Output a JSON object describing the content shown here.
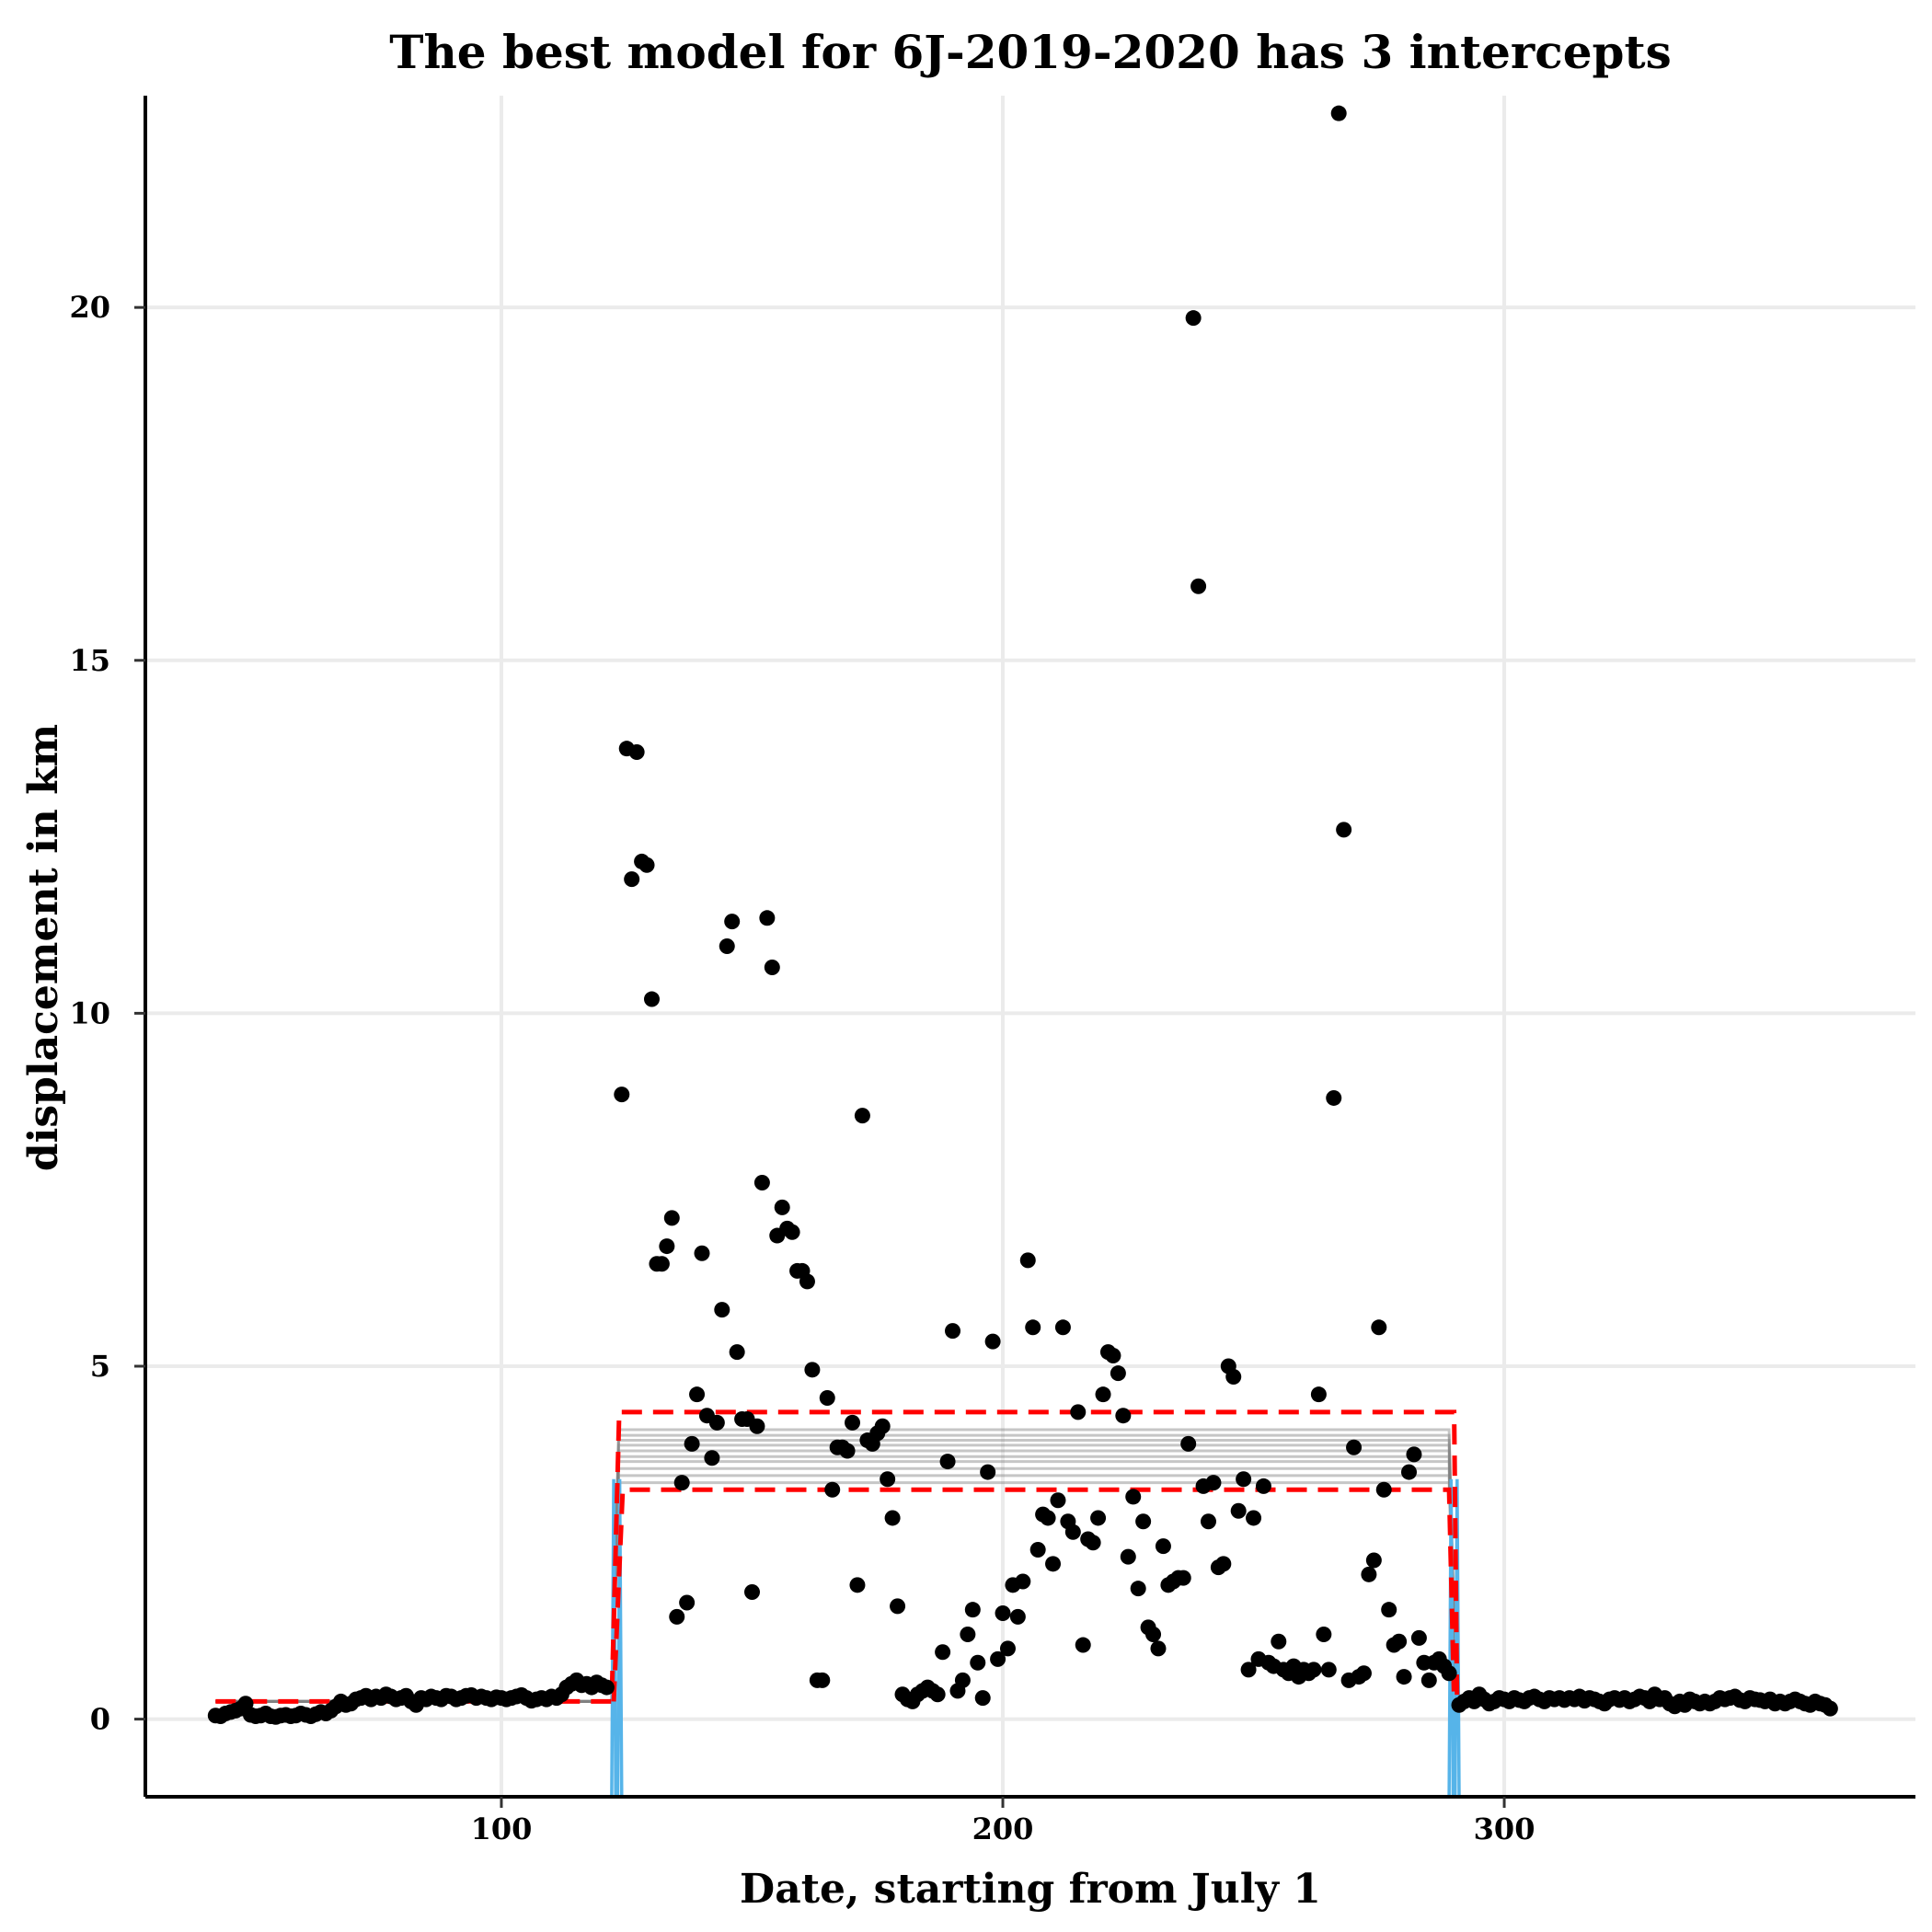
{
  "chart_data": {
    "type": "scatter",
    "title": "The best model for 6J-2019-2020 has 3 intercepts",
    "xlabel": "Date, starting from July 1",
    "ylabel": "displacement in km",
    "xlim": [
      29,
      382
    ],
    "ylim": [
      -1.1,
      23.0
    ],
    "xticks": [
      100,
      200,
      300
    ],
    "yticks": [
      0,
      5,
      10,
      15,
      20
    ],
    "grid": true,
    "colors": {
      "points": "#000000",
      "model_lines": "#808080",
      "interval": "#ff0000",
      "transition": "#56b4e9",
      "grid": "#ebebeb"
    },
    "breakpoints": [
      123,
      290
    ],
    "segment_means": [
      0.25,
      3.8,
      0.25
    ],
    "interval_band": {
      "upper": 4.35,
      "lower": 3.25
    },
    "points": [
      [
        43,
        0.05
      ],
      [
        44,
        0.04
      ],
      [
        45,
        0.08
      ],
      [
        46,
        0.1
      ],
      [
        47,
        0.12
      ],
      [
        48,
        0.15
      ],
      [
        49,
        0.22
      ],
      [
        50,
        0.06
      ],
      [
        51,
        0.04
      ],
      [
        52,
        0.05
      ],
      [
        53,
        0.08
      ],
      [
        54,
        0.04
      ],
      [
        55,
        0.03
      ],
      [
        56,
        0.05
      ],
      [
        57,
        0.06
      ],
      [
        58,
        0.04
      ],
      [
        59,
        0.05
      ],
      [
        60,
        0.08
      ],
      [
        61,
        0.06
      ],
      [
        62,
        0.04
      ],
      [
        63,
        0.07
      ],
      [
        64,
        0.1
      ],
      [
        65,
        0.08
      ],
      [
        66,
        0.12
      ],
      [
        67,
        0.18
      ],
      [
        68,
        0.25
      ],
      [
        69,
        0.2
      ],
      [
        70,
        0.22
      ],
      [
        71,
        0.28
      ],
      [
        72,
        0.3
      ],
      [
        73,
        0.33
      ],
      [
        74,
        0.28
      ],
      [
        75,
        0.32
      ],
      [
        76,
        0.3
      ],
      [
        77,
        0.35
      ],
      [
        78,
        0.32
      ],
      [
        79,
        0.28
      ],
      [
        80,
        0.3
      ],
      [
        81,
        0.33
      ],
      [
        82,
        0.25
      ],
      [
        83,
        0.2
      ],
      [
        84,
        0.3
      ],
      [
        85,
        0.28
      ],
      [
        86,
        0.32
      ],
      [
        87,
        0.3
      ],
      [
        88,
        0.28
      ],
      [
        89,
        0.33
      ],
      [
        90,
        0.32
      ],
      [
        91,
        0.28
      ],
      [
        92,
        0.3
      ],
      [
        93,
        0.33
      ],
      [
        94,
        0.34
      ],
      [
        95,
        0.3
      ],
      [
        96,
        0.32
      ],
      [
        97,
        0.3
      ],
      [
        98,
        0.28
      ],
      [
        99,
        0.31
      ],
      [
        100,
        0.3
      ],
      [
        101,
        0.28
      ],
      [
        102,
        0.3
      ],
      [
        103,
        0.32
      ],
      [
        104,
        0.34
      ],
      [
        105,
        0.3
      ],
      [
        106,
        0.26
      ],
      [
        107,
        0.28
      ],
      [
        108,
        0.3
      ],
      [
        109,
        0.28
      ],
      [
        110,
        0.32
      ],
      [
        111,
        0.3
      ],
      [
        112,
        0.35
      ],
      [
        113,
        0.45
      ],
      [
        114,
        0.5
      ],
      [
        115,
        0.55
      ],
      [
        116,
        0.48
      ],
      [
        117,
        0.5
      ],
      [
        118,
        0.45
      ],
      [
        119,
        0.52
      ],
      [
        120,
        0.48
      ],
      [
        121,
        0.45
      ],
      [
        124,
        8.85
      ],
      [
        125,
        13.75
      ],
      [
        126,
        11.9
      ],
      [
        127,
        13.7
      ],
      [
        128,
        12.15
      ],
      [
        129,
        12.1
      ],
      [
        130,
        10.2
      ],
      [
        131,
        6.45
      ],
      [
        132,
        6.45
      ],
      [
        133,
        6.7
      ],
      [
        134,
        7.1
      ],
      [
        135,
        1.45
      ],
      [
        136,
        3.35
      ],
      [
        137,
        1.65
      ],
      [
        138,
        3.9
      ],
      [
        139,
        4.6
      ],
      [
        140,
        6.6
      ],
      [
        141,
        4.3
      ],
      [
        142,
        3.7
      ],
      [
        143,
        4.2
      ],
      [
        144,
        5.8
      ],
      [
        145,
        10.95
      ],
      [
        146,
        11.3
      ],
      [
        147,
        5.2
      ],
      [
        148,
        4.25
      ],
      [
        149,
        4.25
      ],
      [
        150,
        1.8
      ],
      [
        151,
        4.15
      ],
      [
        152,
        7.6
      ],
      [
        153,
        11.35
      ],
      [
        154,
        10.65
      ],
      [
        155,
        6.85
      ],
      [
        156,
        7.25
      ],
      [
        157,
        6.95
      ],
      [
        158,
        6.9
      ],
      [
        159,
        6.35
      ],
      [
        160,
        6.35
      ],
      [
        161,
        6.2
      ],
      [
        162,
        4.95
      ],
      [
        163,
        0.55
      ],
      [
        164,
        0.55
      ],
      [
        165,
        4.55
      ],
      [
        166,
        3.25
      ],
      [
        167,
        3.85
      ],
      [
        168,
        3.85
      ],
      [
        169,
        3.8
      ],
      [
        170,
        4.2
      ],
      [
        171,
        1.9
      ],
      [
        172,
        8.55
      ],
      [
        173,
        3.95
      ],
      [
        174,
        3.9
      ],
      [
        175,
        4.05
      ],
      [
        176,
        4.15
      ],
      [
        177,
        3.4
      ],
      [
        178,
        2.85
      ],
      [
        179,
        1.6
      ],
      [
        180,
        0.35
      ],
      [
        181,
        0.28
      ],
      [
        182,
        0.25
      ],
      [
        183,
        0.35
      ],
      [
        184,
        0.4
      ],
      [
        185,
        0.45
      ],
      [
        186,
        0.4
      ],
      [
        187,
        0.35
      ],
      [
        188,
        0.95
      ],
      [
        189,
        3.65
      ],
      [
        190,
        5.5
      ],
      [
        191,
        0.4
      ],
      [
        192,
        0.55
      ],
      [
        193,
        1.2
      ],
      [
        194,
        1.55
      ],
      [
        195,
        0.8
      ],
      [
        196,
        0.3
      ],
      [
        197,
        3.5
      ],
      [
        198,
        5.35
      ],
      [
        199,
        0.85
      ],
      [
        200,
        1.5
      ],
      [
        201,
        1.0
      ],
      [
        202,
        1.9
      ],
      [
        203,
        1.45
      ],
      [
        204,
        1.95
      ],
      [
        205,
        6.5
      ],
      [
        206,
        5.55
      ],
      [
        207,
        2.4
      ],
      [
        208,
        2.9
      ],
      [
        209,
        2.85
      ],
      [
        210,
        2.2
      ],
      [
        211,
        3.1
      ],
      [
        212,
        5.55
      ],
      [
        213,
        2.8
      ],
      [
        214,
        2.65
      ],
      [
        215,
        4.35
      ],
      [
        216,
        1.05
      ],
      [
        217,
        2.55
      ],
      [
        218,
        2.5
      ],
      [
        219,
        2.85
      ],
      [
        220,
        4.6
      ],
      [
        221,
        5.2
      ],
      [
        222,
        5.15
      ],
      [
        223,
        4.9
      ],
      [
        224,
        4.3
      ],
      [
        225,
        2.3
      ],
      [
        226,
        3.15
      ],
      [
        227,
        1.85
      ],
      [
        228,
        2.8
      ],
      [
        229,
        1.3
      ],
      [
        230,
        1.2
      ],
      [
        231,
        1.0
      ],
      [
        232,
        2.45
      ],
      [
        233,
        1.9
      ],
      [
        234,
        1.95
      ],
      [
        235,
        2.0
      ],
      [
        236,
        2.0
      ],
      [
        237,
        3.9
      ],
      [
        238,
        19.85
      ],
      [
        239,
        16.05
      ],
      [
        240,
        3.3
      ],
      [
        241,
        2.8
      ],
      [
        242,
        3.35
      ],
      [
        243,
        2.15
      ],
      [
        244,
        2.2
      ],
      [
        245,
        5.0
      ],
      [
        246,
        4.85
      ],
      [
        247,
        2.95
      ],
      [
        248,
        3.4
      ],
      [
        249,
        0.7
      ],
      [
        250,
        2.85
      ],
      [
        251,
        0.85
      ],
      [
        252,
        3.3
      ],
      [
        253,
        0.8
      ],
      [
        254,
        0.75
      ],
      [
        255,
        1.1
      ],
      [
        256,
        0.7
      ],
      [
        257,
        0.65
      ],
      [
        258,
        0.75
      ],
      [
        259,
        0.6
      ],
      [
        260,
        0.7
      ],
      [
        261,
        0.65
      ],
      [
        262,
        0.7
      ],
      [
        263,
        4.6
      ],
      [
        264,
        1.2
      ],
      [
        265,
        0.7
      ],
      [
        266,
        8.8
      ],
      [
        267,
        22.75
      ],
      [
        268,
        12.6
      ],
      [
        269,
        0.55
      ],
      [
        270,
        3.85
      ],
      [
        271,
        0.6
      ],
      [
        272,
        0.65
      ],
      [
        273,
        2.05
      ],
      [
        274,
        2.25
      ],
      [
        275,
        5.55
      ],
      [
        276,
        3.25
      ],
      [
        277,
        1.55
      ],
      [
        278,
        1.05
      ],
      [
        279,
        1.1
      ],
      [
        280,
        0.6
      ],
      [
        281,
        3.5
      ],
      [
        282,
        3.75
      ],
      [
        283,
        1.15
      ],
      [
        284,
        0.8
      ],
      [
        285,
        0.55
      ],
      [
        286,
        0.8
      ],
      [
        287,
        0.85
      ],
      [
        288,
        0.75
      ],
      [
        289,
        0.65
      ],
      [
        291,
        0.2
      ],
      [
        292,
        0.25
      ],
      [
        293,
        0.3
      ],
      [
        294,
        0.25
      ],
      [
        295,
        0.35
      ],
      [
        296,
        0.28
      ],
      [
        297,
        0.22
      ],
      [
        298,
        0.25
      ],
      [
        299,
        0.3
      ],
      [
        300,
        0.28
      ],
      [
        301,
        0.25
      ],
      [
        302,
        0.3
      ],
      [
        303,
        0.27
      ],
      [
        304,
        0.25
      ],
      [
        305,
        0.3
      ],
      [
        306,
        0.32
      ],
      [
        307,
        0.28
      ],
      [
        308,
        0.25
      ],
      [
        309,
        0.3
      ],
      [
        310,
        0.28
      ],
      [
        311,
        0.3
      ],
      [
        312,
        0.27
      ],
      [
        313,
        0.3
      ],
      [
        314,
        0.28
      ],
      [
        315,
        0.32
      ],
      [
        316,
        0.26
      ],
      [
        317,
        0.3
      ],
      [
        318,
        0.28
      ],
      [
        319,
        0.25
      ],
      [
        320,
        0.22
      ],
      [
        321,
        0.28
      ],
      [
        322,
        0.3
      ],
      [
        323,
        0.27
      ],
      [
        324,
        0.3
      ],
      [
        325,
        0.25
      ],
      [
        326,
        0.28
      ],
      [
        327,
        0.32
      ],
      [
        328,
        0.3
      ],
      [
        329,
        0.25
      ],
      [
        330,
        0.35
      ],
      [
        331,
        0.28
      ],
      [
        332,
        0.3
      ],
      [
        333,
        0.22
      ],
      [
        334,
        0.18
      ],
      [
        335,
        0.25
      ],
      [
        336,
        0.2
      ],
      [
        337,
        0.28
      ],
      [
        338,
        0.25
      ],
      [
        339,
        0.22
      ],
      [
        340,
        0.25
      ],
      [
        341,
        0.22
      ],
      [
        342,
        0.25
      ],
      [
        343,
        0.3
      ],
      [
        344,
        0.28
      ],
      [
        345,
        0.3
      ],
      [
        346,
        0.32
      ],
      [
        347,
        0.27
      ],
      [
        348,
        0.25
      ],
      [
        349,
        0.3
      ],
      [
        350,
        0.28
      ],
      [
        351,
        0.27
      ],
      [
        352,
        0.25
      ],
      [
        353,
        0.28
      ],
      [
        354,
        0.22
      ],
      [
        355,
        0.25
      ],
      [
        356,
        0.22
      ],
      [
        357,
        0.25
      ],
      [
        358,
        0.28
      ],
      [
        359,
        0.25
      ],
      [
        360,
        0.22
      ],
      [
        361,
        0.2
      ],
      [
        362,
        0.25
      ],
      [
        363,
        0.22
      ],
      [
        364,
        0.2
      ],
      [
        365,
        0.15
      ]
    ]
  }
}
